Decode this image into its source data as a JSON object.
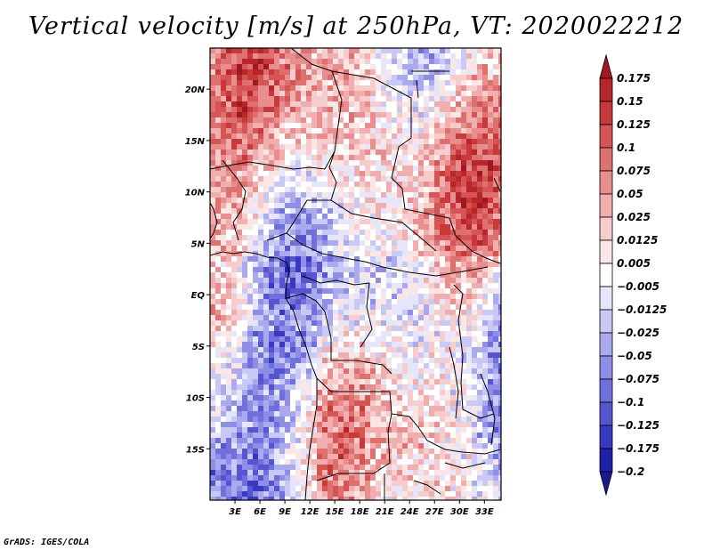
{
  "title": "Vertical velocity [m/s] at 250hPa, VT: 2020022212",
  "footer": "GrADS: IGES/COLA",
  "map": {
    "variable": "Vertical velocity",
    "units": "m/s",
    "level": "250hPa",
    "valid_time": "2020022212",
    "lon_range": [
      0,
      35
    ],
    "lat_range": [
      -20,
      24
    ],
    "lat_ticks": [
      {
        "value": 20,
        "label": "20N"
      },
      {
        "value": 15,
        "label": "15N"
      },
      {
        "value": 10,
        "label": "10N"
      },
      {
        "value": 5,
        "label": "5N"
      },
      {
        "value": 0,
        "label": "EQ"
      },
      {
        "value": -5,
        "label": "5S"
      },
      {
        "value": -10,
        "label": "10S"
      },
      {
        "value": -15,
        "label": "15S"
      }
    ],
    "lon_ticks": [
      {
        "value": 3,
        "label": "3E"
      },
      {
        "value": 6,
        "label": "6E"
      },
      {
        "value": 9,
        "label": "9E"
      },
      {
        "value": 12,
        "label": "12E"
      },
      {
        "value": 15,
        "label": "15E"
      },
      {
        "value": 18,
        "label": "18E"
      },
      {
        "value": 21,
        "label": "21E"
      },
      {
        "value": 24,
        "label": "24E"
      },
      {
        "value": 27,
        "label": "27E"
      },
      {
        "value": 30,
        "label": "30E"
      },
      {
        "value": 33,
        "label": "33E"
      }
    ]
  },
  "colorbar": {
    "levels": [
      "0.175",
      "0.15",
      "0.125",
      "0.1",
      "0.075",
      "0.05",
      "0.025",
      "0.0125",
      "0.005",
      "−0.005",
      "−0.0125",
      "−0.025",
      "−0.05",
      "−0.075",
      "−0.1",
      "−0.125",
      "−0.175",
      "−0.2"
    ],
    "colors": [
      "#a11722",
      "#b7262a",
      "#c83a3a",
      "#d55454",
      "#df7070",
      "#e88e8e",
      "#f0aeae",
      "#f6cccc",
      "#fbe6e6",
      "#ffffff",
      "#e6e6fb",
      "#c9c9f5",
      "#aaaaee",
      "#8e8ee6",
      "#7070dd",
      "#5555d0",
      "#3838c0",
      "#2020aa",
      "#1a1a90"
    ]
  }
}
